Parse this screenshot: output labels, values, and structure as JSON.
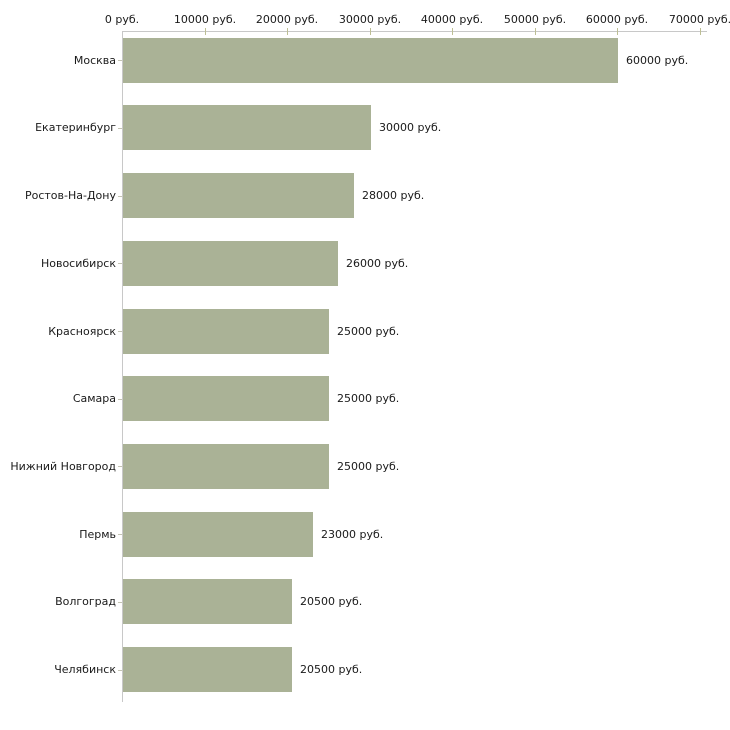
{
  "chart_data": {
    "type": "bar",
    "orientation": "horizontal",
    "title": "",
    "categories": [
      "Москва",
      "Екатеринбург",
      "Ростов-На-Дону",
      "Новосибирск",
      "Красноярск",
      "Самара",
      "Нижний Новгород",
      "Пермь",
      "Волгоград",
      "Челябинск"
    ],
    "values": [
      60000,
      30000,
      28000,
      26000,
      25000,
      25000,
      25000,
      23000,
      20500,
      20500
    ],
    "value_labels": [
      "60000 руб.",
      "30000 руб.",
      "28000 руб.",
      "26000 руб.",
      "25000 руб.",
      "25000 руб.",
      "25000 руб.",
      "23000 руб.",
      "20500 руб.",
      "20500 руб."
    ],
    "x_tick_values": [
      0,
      10000,
      20000,
      30000,
      40000,
      50000,
      60000,
      70000
    ],
    "x_tick_labels": [
      "0 руб.",
      "10000 руб.",
      "20000 руб.",
      "30000 руб.",
      "40000 руб.",
      "50000 руб.",
      "60000 руб.",
      "70000 руб."
    ],
    "xlim": [
      0,
      70000
    ],
    "currency_suffix": "руб.",
    "legend": "none",
    "grid": "off",
    "colors": {
      "bar": "#aab296",
      "axis_line": "#c8c8c8",
      "x_tick": "#bdbf94",
      "y_tick": "#c4c4b4",
      "text": "#1a1a1a",
      "background": "#ffffff"
    }
  }
}
